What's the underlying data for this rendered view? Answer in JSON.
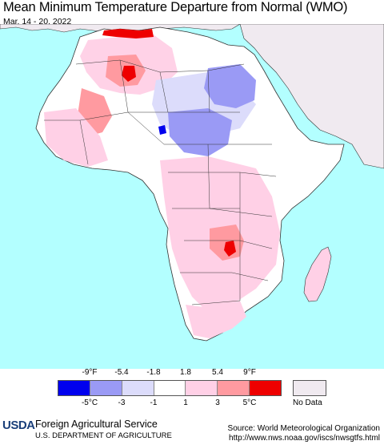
{
  "title": "Mean Minimum Temperature Departure from Normal (WMO)",
  "date_range": "Mar. 14 - 20, 2022",
  "map": {
    "region": "Africa",
    "colors": {
      "ocean": "#b3ffff",
      "land_base": "#ffffff",
      "no_data": "#f0eaf0",
      "border": "#333333"
    }
  },
  "legend": {
    "fahrenheit_labels": [
      "-9°F",
      "-5.4",
      "-1.8",
      "1.8",
      "5.4",
      "9°F"
    ],
    "celsius_labels": [
      "-5°C",
      "-3",
      "-1",
      "1",
      "3",
      "5°C"
    ],
    "colors": [
      "#0000ee",
      "#9a9af5",
      "#dcdcfb",
      "#ffffff",
      "#ffd0e6",
      "#ff9aa0",
      "#ee0000"
    ],
    "no_data_label": "No Data",
    "no_data_color": "#f0eaf0"
  },
  "footer": {
    "logo_text": "USDA",
    "agency": "Foreign Agricultural Service",
    "department": "U.S. DEPARTMENT OF AGRICULTURE",
    "source": "Source: World Meteorological Organization",
    "url": "http://www.nws.noaa.gov/iscs/nwsgtfs.html"
  }
}
